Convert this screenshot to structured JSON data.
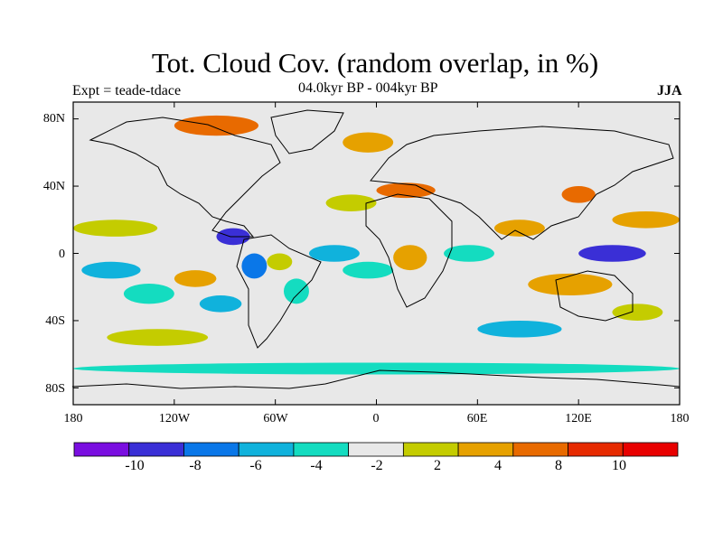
{
  "header": {
    "title": "Tot. Cloud Cov. (random overlap, in %)",
    "experiment": "Expt = teade-tdace",
    "period": "04.0kyr BP - 004kyr BP",
    "season": "JJA"
  },
  "axes": {
    "lat_ticks": [
      "80N",
      "40N",
      "0",
      "40S",
      "80S"
    ],
    "lon_ticks": [
      "180",
      "120W",
      "60W",
      "0",
      "60E",
      "120E",
      "180"
    ]
  },
  "colorbar": {
    "colors": [
      "#7a0ee0",
      "#3a2fd6",
      "#0a77e8",
      "#10b2dc",
      "#14dcc0",
      "#e8e8e8",
      "#c4cc00",
      "#e6a100",
      "#e86a00",
      "#e62a00",
      "#e80000"
    ],
    "labels": [
      "-10",
      "-8",
      "-6",
      "-4",
      "-2",
      "2",
      "4",
      "8",
      "10"
    ]
  },
  "chart_data": {
    "type": "heatmap",
    "title": "Tot. Cloud Cov. (random overlap, in %)",
    "subtitle": "04.0kyr BP - 004kyr BP",
    "season": "JJA",
    "x_range": [
      -180,
      180
    ],
    "y_range": [
      -90,
      90
    ],
    "levels": [
      -10,
      -8,
      -6,
      -4,
      -2,
      2,
      4,
      8,
      10
    ],
    "regions": [
      {
        "lon": [
          -180,
          -130
        ],
        "lat": [
          10,
          20
        ],
        "class": 6
      },
      {
        "lon": [
          -175,
          -140
        ],
        "lat": [
          -15,
          -5
        ],
        "class": 3
      },
      {
        "lon": [
          -150,
          -120
        ],
        "lat": [
          -30,
          -18
        ],
        "class": 4
      },
      {
        "lon": [
          -120,
          -95
        ],
        "lat": [
          -20,
          -10
        ],
        "class": 7
      },
      {
        "lon": [
          -105,
          -80
        ],
        "lat": [
          -35,
          -25
        ],
        "class": 3
      },
      {
        "lon": [
          -95,
          -75
        ],
        "lat": [
          5,
          15
        ],
        "class": 1
      },
      {
        "lon": [
          -80,
          -65
        ],
        "lat": [
          -15,
          0
        ],
        "class": 2
      },
      {
        "lon": [
          -65,
          -50
        ],
        "lat": [
          -10,
          0
        ],
        "class": 6
      },
      {
        "lon": [
          -55,
          -40
        ],
        "lat": [
          -30,
          -15
        ],
        "class": 4
      },
      {
        "lon": [
          -40,
          -10
        ],
        "lat": [
          -5,
          5
        ],
        "class": 3
      },
      {
        "lon": [
          -30,
          0
        ],
        "lat": [
          25,
          35
        ],
        "class": 6
      },
      {
        "lon": [
          0,
          35
        ],
        "lat": [
          33,
          42
        ],
        "class": 8
      },
      {
        "lon": [
          -20,
          10
        ],
        "lat": [
          -15,
          -5
        ],
        "class": 4
      },
      {
        "lon": [
          10,
          30
        ],
        "lat": [
          -10,
          5
        ],
        "class": 7
      },
      {
        "lon": [
          40,
          70
        ],
        "lat": [
          -5,
          5
        ],
        "class": 4
      },
      {
        "lon": [
          70,
          100
        ],
        "lat": [
          10,
          20
        ],
        "class": 7
      },
      {
        "lon": [
          110,
          130
        ],
        "lat": [
          30,
          40
        ],
        "class": 8
      },
      {
        "lon": [
          120,
          160
        ],
        "lat": [
          -5,
          5
        ],
        "class": 1
      },
      {
        "lon": [
          90,
          140
        ],
        "lat": [
          -25,
          -12
        ],
        "class": 7
      },
      {
        "lon": [
          140,
          180
        ],
        "lat": [
          15,
          25
        ],
        "class": 7
      },
      {
        "lon": [
          -120,
          -70
        ],
        "lat": [
          70,
          82
        ],
        "class": 8
      },
      {
        "lon": [
          -20,
          10
        ],
        "lat": [
          60,
          72
        ],
        "class": 7
      },
      {
        "lon": [
          -180,
          180
        ],
        "lat": [
          -72,
          -65
        ],
        "class": 4
      },
      {
        "lon": [
          -160,
          -100
        ],
        "lat": [
          -55,
          -45
        ],
        "class": 6
      },
      {
        "lon": [
          60,
          110
        ],
        "lat": [
          -50,
          -40
        ],
        "class": 3
      },
      {
        "lon": [
          140,
          170
        ],
        "lat": [
          -40,
          -30
        ],
        "class": 6
      }
    ]
  }
}
